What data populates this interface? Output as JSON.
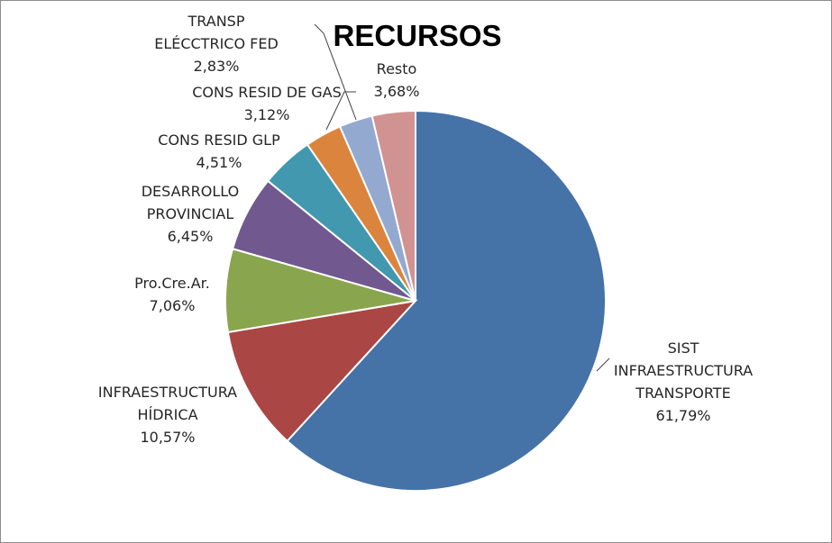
{
  "chart_data": {
    "type": "pie",
    "title": "RECURSOS",
    "categories": [
      "SIST INFRAESTRUCTURA TRANSPORTE",
      "INFRAESTRUCTURA HÍDRICA",
      "Pro.Cre.Ar.",
      "DESARROLLO PROVINCIAL",
      "CONS RESID GLP",
      "CONS RESID DE GAS",
      "TRANSP ELÉCCTRICO FED",
      "Resto"
    ],
    "values": [
      61.79,
      10.57,
      7.06,
      6.45,
      4.51,
      3.12,
      2.83,
      3.68
    ],
    "colors": [
      "#4572A7",
      "#AA4643",
      "#89A54E",
      "#71588F",
      "#4198AF",
      "#DB843D",
      "#93A9CF",
      "#D19392"
    ],
    "labels": [
      {
        "lines": [
          "SIST",
          "INFRAESTRUCTURA",
          "TRANSPORTE"
        ],
        "pct": "61,79%"
      },
      {
        "lines": [
          "INFRAESTRUCTURA",
          "HÍDRICA"
        ],
        "pct": "10,57%"
      },
      {
        "lines": [
          "Pro.Cre.Ar."
        ],
        "pct": "7,06%"
      },
      {
        "lines": [
          "DESARROLLO",
          "PROVINCIAL"
        ],
        "pct": "6,45%"
      },
      {
        "lines": [
          "CONS RESID GLP"
        ],
        "pct": "4,51%"
      },
      {
        "lines": [
          "CONS RESID DE GAS"
        ],
        "pct": "3,12%"
      },
      {
        "lines": [
          "TRANSP",
          "ELÉCCTRICO FED"
        ],
        "pct": "2,83%"
      },
      {
        "lines": [
          "Resto"
        ],
        "pct": "3,68%"
      }
    ],
    "legend": "none"
  }
}
